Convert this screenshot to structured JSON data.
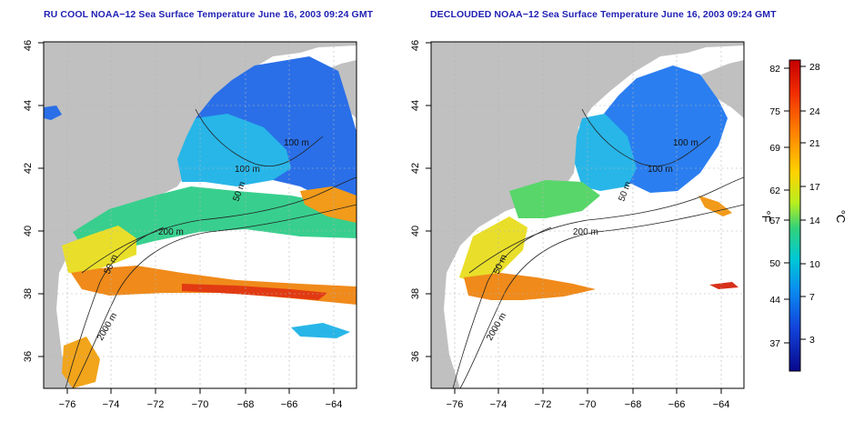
{
  "map_left": {
    "title": "RU COOL NOAA−12 Sea Surface Temperature June 16, 2003 09:24 GMT",
    "contour_labels": [
      "100 m",
      "100 m",
      "50 m",
      "200 m",
      "50 m",
      "2000 m"
    ]
  },
  "map_right": {
    "title": "DECLOUDED NOAA−12 Sea Surface Temperature June 16, 2003 09:24 GMT",
    "contour_labels": [
      "100 m",
      "100 m",
      "50 m",
      "200 m",
      "50 m",
      "2000 m"
    ]
  },
  "axes": {
    "x_ticks": [
      "−76",
      "−74",
      "−72",
      "−70",
      "−68",
      "−66",
      "−64"
    ],
    "y_ticks": [
      "36",
      "38",
      "40",
      "42",
      "44",
      "46"
    ],
    "lon_range": [
      -77,
      -63
    ],
    "lat_range": [
      35,
      46
    ]
  },
  "colorbar": {
    "fahrenheit_ticks": [
      "82",
      "75",
      "69",
      "62",
      "57",
      "50",
      "44",
      "37"
    ],
    "celsius_ticks": [
      "28",
      "24",
      "21",
      "17",
      "14",
      "10",
      "7",
      "3"
    ],
    "fahrenheit_unit": "°F",
    "celsius_unit": "°C",
    "gradient_colors": [
      "#c40000",
      "#f02a00",
      "#ff7a00",
      "#ffd200",
      "#b8ee20",
      "#32d27a",
      "#00c8d6",
      "#0a8cf0",
      "#1244dc",
      "#08088c"
    ]
  },
  "colors": {
    "land": "#c0c0c0",
    "title": "#1f1fb4",
    "grid": "#b4b4b4"
  }
}
